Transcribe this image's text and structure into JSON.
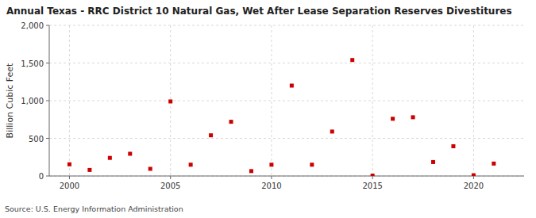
{
  "chart_data": {
    "type": "scatter",
    "title": "Annual Texas - RRC District 10 Natural Gas, Wet After Lease Separation Reserves Divestitures",
    "y_label": "Billion Cubic Feet",
    "source": "Source: U.S. Energy Information Administration",
    "x": [
      2000,
      2001,
      2002,
      2003,
      2004,
      2005,
      2006,
      2007,
      2008,
      2009,
      2010,
      2011,
      2012,
      2013,
      2014,
      2015,
      2016,
      2017,
      2018,
      2019,
      2020,
      2021
    ],
    "values": [
      155,
      80,
      240,
      295,
      95,
      990,
      150,
      540,
      720,
      65,
      150,
      1200,
      150,
      590,
      1540,
      5,
      760,
      780,
      185,
      395,
      10,
      165
    ],
    "color": "#cc0000",
    "marker": "square",
    "xlim": [
      1999,
      2022.5
    ],
    "ylim": [
      0,
      2000
    ],
    "xticks": [
      2000,
      2005,
      2010,
      2015,
      2020
    ],
    "yticks": [
      0,
      500,
      {
        "value": 1000,
        "label": "1,000"
      },
      {
        "value": 1500,
        "label": "1,500"
      },
      {
        "value": 2000,
        "label": "2,000"
      }
    ],
    "grid": true
  }
}
